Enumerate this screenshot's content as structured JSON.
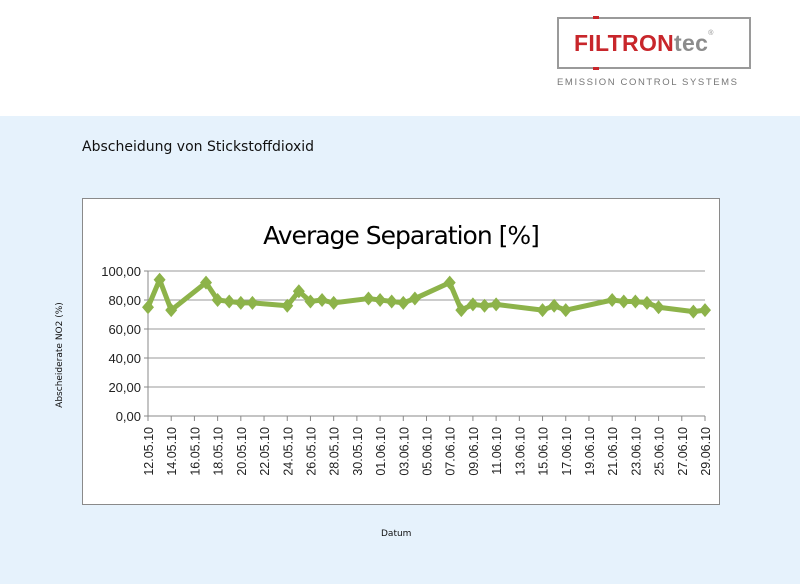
{
  "logo": {
    "brand_red": "FILTRON",
    "brand_grey": "tec",
    "registered": "®",
    "tagline": "EMISSION CONTROL SYSTEMS"
  },
  "page_title": "Abscheidung von Stickstoffdioxid",
  "colors": {
    "background": "#e6f2fc",
    "series": "#8db34a",
    "brand_red": "#c8262b"
  },
  "chart_data": {
    "type": "line",
    "title": "Average Separation [%]",
    "xlabel": "Datum",
    "ylabel": "Abscheiderate NO2 (%)",
    "ylim": [
      0,
      100
    ],
    "yticks": [
      "0,00",
      "20,00",
      "40,00",
      "60,00",
      "80,00",
      "100,00"
    ],
    "xticks": [
      "12.05.10",
      "14.05.10",
      "16.05.10",
      "18.05.10",
      "20.05.10",
      "22.05.10",
      "24.05.10",
      "26.05.10",
      "28.05.10",
      "30.05.10",
      "01.06.10",
      "03.06.10",
      "05.06.10",
      "07.06.10",
      "09.06.10",
      "11.06.10",
      "13.06.10",
      "15.06.10",
      "17.06.10",
      "19.06.10",
      "21.06.10",
      "23.06.10",
      "25.06.10",
      "27.06.10",
      "29.06.10"
    ],
    "grid": true,
    "series": [
      {
        "name": "Average Separation",
        "x": [
          "12.05.10",
          "13.05.10",
          "14.05.10",
          "17.05.10",
          "18.05.10",
          "19.05.10",
          "20.05.10",
          "21.05.10",
          "24.05.10",
          "25.05.10",
          "26.05.10",
          "27.05.10",
          "28.05.10",
          "31.05.10",
          "01.06.10",
          "02.06.10",
          "03.06.10",
          "04.06.10",
          "07.06.10",
          "08.06.10",
          "09.06.10",
          "10.06.10",
          "11.06.10",
          "15.06.10",
          "16.06.10",
          "17.06.10",
          "21.06.10",
          "22.06.10",
          "23.06.10",
          "24.06.10",
          "25.06.10",
          "28.06.10",
          "29.06.10"
        ],
        "day_index": [
          0,
          1,
          2,
          5,
          6,
          7,
          8,
          9,
          12,
          13,
          14,
          15,
          16,
          19,
          20,
          21,
          22,
          23,
          26,
          27,
          28,
          29,
          30,
          34,
          35,
          36,
          40,
          41,
          42,
          43,
          44,
          47,
          48
        ],
        "values": [
          75,
          94,
          73,
          92,
          80,
          79,
          78,
          78,
          76,
          86,
          79,
          80,
          78,
          81,
          80,
          79,
          78,
          81,
          92,
          73,
          77,
          76,
          77,
          73,
          76,
          73,
          80,
          79,
          79,
          78,
          75,
          72,
          73
        ]
      }
    ]
  }
}
